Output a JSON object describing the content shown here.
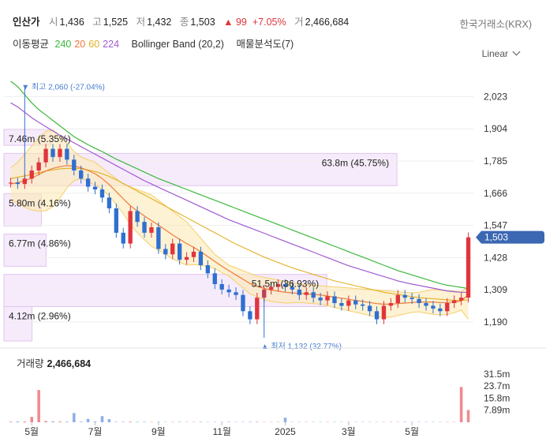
{
  "header": {
    "name": "인산가",
    "open_label": "시",
    "open": "1,436",
    "high_label": "고",
    "high": "1,525",
    "low_label": "저",
    "low": "1,432",
    "close_label": "종",
    "close": "1,503",
    "change": "▲ 99",
    "change_pct": "+7.05%",
    "volume_label": "거",
    "volume": "2,466,684",
    "exchange": "한국거래소(KRX)"
  },
  "indicators": {
    "ma_label": "이동평균",
    "ma_periods": [
      {
        "label": "240",
        "color": "#3cb93c"
      },
      {
        "label": "20",
        "color": "#f07a3a"
      },
      {
        "label": "60",
        "color": "#e0b020"
      },
      {
        "label": "224",
        "color": "#a05ad0"
      }
    ],
    "bollinger": "Bollinger Band (20,2)",
    "volume_profile": "매물분석도(7)"
  },
  "scale_label": "Linear",
  "chart_data": {
    "type": "candlestick",
    "y_ticks": [
      "2,023",
      "1,904",
      "1,785",
      "1,666",
      "1,547",
      "1,428",
      "1,309",
      "1,190"
    ],
    "y_tick_values": [
      2023,
      1904,
      1785,
      1666,
      1547,
      1428,
      1309,
      1190
    ],
    "ylim": [
      1120,
      2100
    ],
    "x_ticks": [
      "5월",
      "7월",
      "9월",
      "11월",
      "2025",
      "3월",
      "5월"
    ],
    "x_tick_index": [
      3,
      12,
      21,
      30,
      39,
      48,
      57
    ],
    "n_points": 66,
    "current_price": "1,503",
    "current_value": 1503,
    "high_annotation": "최고 2,060 (-27.04%)",
    "low_annotation": "최저 1,132 (32.77%)",
    "high_value": 2060,
    "low_value": 1132,
    "close": [
      1705,
      1700,
      1720,
      1750,
      1780,
      1830,
      1800,
      1830,
      1790,
      1750,
      1720,
      1690,
      1680,
      1650,
      1610,
      1520,
      1480,
      1600,
      1560,
      1520,
      1540,
      1460,
      1440,
      1480,
      1420,
      1430,
      1450,
      1400,
      1370,
      1330,
      1310,
      1300,
      1290,
      1230,
      1200,
      1280,
      1310,
      1320,
      1330,
      1320,
      1310,
      1290,
      1300,
      1280,
      1270,
      1285,
      1260,
      1250,
      1270,
      1255,
      1250,
      1230,
      1200,
      1250,
      1260,
      1290,
      1280,
      1275,
      1260,
      1250,
      1240,
      1230,
      1260,
      1270,
      1280,
      1503
    ],
    "ma240": [
      2080,
      2060,
      2030,
      2000,
      1975,
      1955,
      1935,
      1915,
      1895,
      1875,
      1860,
      1845,
      1832,
      1820,
      1806,
      1792,
      1780,
      1768,
      1756,
      1744,
      1732,
      1720,
      1710,
      1700,
      1690,
      1680,
      1670,
      1660,
      1650,
      1640,
      1630,
      1620,
      1610,
      1600,
      1590,
      1580,
      1570,
      1560,
      1550,
      1540,
      1530,
      1520,
      1510,
      1500,
      1490,
      1480,
      1470,
      1460,
      1450,
      1440,
      1430,
      1420,
      1410,
      1400,
      1390,
      1380,
      1372,
      1364,
      1356,
      1348,
      1340,
      1332,
      1326,
      1322,
      1318,
      1314
    ],
    "ma224": [
      2000,
      1985,
      1965,
      1945,
      1928,
      1912,
      1896,
      1880,
      1866,
      1852,
      1838,
      1824,
      1810,
      1796,
      1782,
      1768,
      1754,
      1740,
      1726,
      1712,
      1700,
      1688,
      1676,
      1664,
      1652,
      1640,
      1628,
      1616,
      1604,
      1592,
      1580,
      1568,
      1558,
      1548,
      1538,
      1528,
      1518,
      1508,
      1498,
      1488,
      1478,
      1468,
      1458,
      1448,
      1438,
      1428,
      1418,
      1408,
      1398,
      1390,
      1382,
      1374,
      1366,
      1358,
      1350,
      1342,
      1336,
      1330,
      1325,
      1320,
      1315,
      1310,
      1305,
      1302,
      1300,
      1300
    ],
    "ma20": [
      1700,
      1705,
      1712,
      1722,
      1735,
      1748,
      1758,
      1764,
      1768,
      1766,
      1760,
      1750,
      1738,
      1720,
      1698,
      1672,
      1645,
      1620,
      1600,
      1582,
      1565,
      1548,
      1530,
      1512,
      1496,
      1480,
      1466,
      1450,
      1432,
      1414,
      1396,
      1380,
      1364,
      1348,
      1332,
      1322,
      1314,
      1308,
      1304,
      1300,
      1298,
      1296,
      1294,
      1292,
      1290,
      1286,
      1282,
      1278,
      1274,
      1270,
      1266,
      1262,
      1258,
      1256,
      1256,
      1258,
      1260,
      1262,
      1264,
      1264,
      1264,
      1262,
      1262,
      1264,
      1268,
      1290
    ],
    "ma60": [
      1720,
      1725,
      1730,
      1736,
      1742,
      1748,
      1752,
      1756,
      1758,
      1758,
      1756,
      1752,
      1746,
      1738,
      1728,
      1716,
      1702,
      1688,
      1674,
      1660,
      1646,
      1632,
      1618,
      1604,
      1590,
      1576,
      1562,
      1548,
      1534,
      1520,
      1506,
      1492,
      1478,
      1466,
      1454,
      1442,
      1430,
      1420,
      1410,
      1400,
      1390,
      1382,
      1374,
      1366,
      1358,
      1350,
      1342,
      1336,
      1330,
      1324,
      1318,
      1312,
      1306,
      1300,
      1296,
      1292,
      1288,
      1284,
      1280,
      1278,
      1276,
      1274,
      1272,
      1270,
      1270,
      1272
    ],
    "bb_upper": [
      1760,
      1780,
      1810,
      1840,
      1870,
      1895,
      1900,
      1880,
      1850,
      1820,
      1800,
      1790,
      1780,
      1760,
      1740,
      1720,
      1700,
      1690,
      1680,
      1670,
      1660,
      1640,
      1620,
      1600,
      1580,
      1560,
      1530,
      1500,
      1470,
      1440,
      1420,
      1400,
      1390,
      1380,
      1370,
      1360,
      1355,
      1350,
      1345,
      1340,
      1335,
      1330,
      1328,
      1326,
      1324,
      1322,
      1320,
      1318,
      1316,
      1314,
      1312,
      1310,
      1308,
      1306,
      1304,
      1302,
      1300,
      1298,
      1300,
      1305,
      1310,
      1308,
      1306,
      1304,
      1302,
      1320
    ],
    "bb_lower": [
      1640,
      1630,
      1614,
      1604,
      1600,
      1601,
      1616,
      1648,
      1686,
      1712,
      1720,
      1710,
      1696,
      1680,
      1656,
      1624,
      1590,
      1550,
      1520,
      1494,
      1470,
      1456,
      1440,
      1424,
      1412,
      1400,
      1402,
      1400,
      1394,
      1388,
      1372,
      1360,
      1338,
      1316,
      1294,
      1284,
      1273,
      1266,
      1263,
      1260,
      1261,
      1262,
      1260,
      1258,
      1256,
      1250,
      1244,
      1238,
      1232,
      1226,
      1220,
      1214,
      1208,
      1206,
      1208,
      1214,
      1220,
      1226,
      1228,
      1223,
      1218,
      1216,
      1218,
      1224,
      1234,
      1200
    ],
    "volume_profile": [
      {
        "label": "7.46m (5.35%)",
        "price_from": 1843,
        "price_to": 1902,
        "width": 0.1
      },
      {
        "label": "63.8m (45.75%)",
        "price_from": 1694,
        "price_to": 1813,
        "width": 0.84
      },
      {
        "label": "5.80m (4.16%)",
        "price_from": 1545,
        "price_to": 1664,
        "width": 0.08
      },
      {
        "label": "6.77m (4.86%)",
        "price_from": 1396,
        "price_to": 1515,
        "width": 0.09
      },
      {
        "label": "51.5m (36.93%)",
        "price_from": 1247,
        "price_to": 1366,
        "width": 0.69
      },
      {
        "label": "4.12m (2.96%)",
        "price_from": 1120,
        "price_to": 1247,
        "width": 0.06
      }
    ],
    "volume_title": "거래량",
    "volume_value": "2,466,684",
    "volume_ticks": [
      "31.5m",
      "23.7m",
      "15.8m",
      "7.89m"
    ],
    "volume_tick_values": [
      31.5,
      23.7,
      15.8,
      7.89
    ],
    "volume_max": 36,
    "volume_bars": [
      0.4,
      0.5,
      0.5,
      3.5,
      21.0,
      0.8,
      0.6,
      0.5,
      0.4,
      6.0,
      0.4,
      2.2,
      0.5,
      4.0,
      2.0,
      0.3,
      0.3,
      0.4,
      0.3,
      0.3,
      0.2,
      0.3,
      0.2,
      0.2,
      0.3,
      0.2,
      0.2,
      0.3,
      0.2,
      0.2,
      0.2,
      0.3,
      0.2,
      0.2,
      0.3,
      0.3,
      0.2,
      0.2,
      0.2,
      3.0,
      0.2,
      0.2,
      0.2,
      0.2,
      0.2,
      0.2,
      0.2,
      0.2,
      0.2,
      0.2,
      0.2,
      0.2,
      0.2,
      0.2,
      0.2,
      0.2,
      0.3,
      0.2,
      0.2,
      0.2,
      0.2,
      0.2,
      0.2,
      0.2,
      23.0,
      8.0
    ]
  }
}
